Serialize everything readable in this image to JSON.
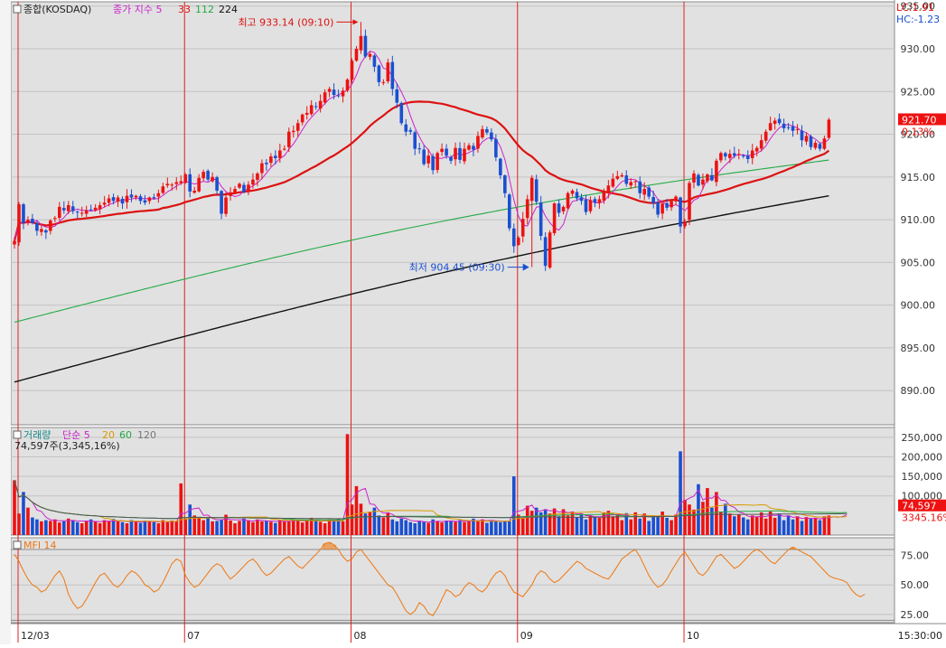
{
  "header": {
    "price_title": "종합(KOSDAQ)",
    "ma_label": "종가 지수 5",
    "ma_periods": [
      "33",
      "112",
      "224"
    ],
    "lc_label": "LC:1.91",
    "hc_label": "HC:-1.23"
  },
  "annotations": {
    "high": "최고 933.14 (09:10)",
    "low": "최저 904.45 (09:30)"
  },
  "badges": {
    "last_price": "921.70",
    "last_change": "0.13%",
    "last_volume": "74,597",
    "volume_pct": "3345.16%"
  },
  "volume_header": {
    "title": "거래량",
    "ma_prefix": "단순 5",
    "ma_periods": [
      "20",
      "60",
      "120"
    ],
    "current": "74,597주(3,345,16%)"
  },
  "mfi_header": {
    "title": "MFI 14"
  },
  "colors": {
    "up": "#ee1111",
    "down": "#1a4fd0",
    "ma5": "#cc22cc",
    "ma33": "#dd1111",
    "ma112": "#22aa44",
    "ma224": "#111111",
    "mfi": "#ee7711",
    "session_line": "#dd2222"
  },
  "chart_data": [
    {
      "type": "candlestick",
      "title": "종합(KOSDAQ)",
      "y_ticks": [
        "890.00",
        "895.00",
        "900.00",
        "905.00",
        "910.00",
        "915.00",
        "920.00",
        "925.00",
        "930.00",
        "935.00"
      ],
      "ylim": [
        886,
        935.5
      ],
      "x_ticks": [
        "12/03",
        "07",
        "08",
        "09",
        "10",
        "15:30:00"
      ],
      "session_starts": [
        0,
        37,
        74,
        111,
        148
      ],
      "high": {
        "value": 933.14,
        "index": 77
      },
      "low": {
        "value": 904.45,
        "index": 115
      },
      "closes": [
        907.5,
        911.8,
        909.6,
        910.0,
        909.6,
        908.7,
        908.9,
        908.5,
        909.9,
        910.2,
        911.5,
        911.1,
        911.7,
        911.0,
        910.9,
        910.8,
        911.1,
        911.2,
        911.4,
        911.7,
        912.0,
        912.5,
        912.2,
        912.6,
        911.9,
        912.8,
        912.6,
        912.8,
        912.2,
        912.0,
        912.6,
        912.5,
        913.1,
        913.9,
        914.2,
        914.1,
        914.4,
        914.5,
        915.3,
        913.3,
        913.4,
        914.9,
        915.6,
        914.7,
        915.0,
        913.4,
        910.7,
        912.6,
        913.2,
        913.6,
        914.2,
        913.2,
        914.1,
        914.7,
        915.4,
        916.6,
        916.5,
        917.4,
        917.2,
        918.1,
        918.3,
        920.3,
        920.4,
        921.3,
        922.3,
        922.5,
        923.4,
        923.2,
        923.9,
        924.9,
        925.3,
        924.6,
        924.5,
        925.1,
        926.4,
        928.6,
        930.0,
        931.5,
        929.1,
        929.4,
        927.9,
        926.1,
        926.1,
        928.4,
        925.3,
        923.7,
        921.3,
        920.3,
        920.3,
        918.3,
        918.3,
        916.5,
        917.5,
        915.8,
        917.8,
        918.3,
        917.5,
        916.9,
        918.4,
        917.0,
        918.3,
        918.7,
        918.2,
        919.8,
        920.6,
        920.2,
        919.4,
        917.3,
        915.2,
        913.1,
        909.0,
        906.9,
        907.9,
        910.1,
        912.4,
        914.9,
        912.1,
        908.1,
        904.6,
        908.5,
        911.9,
        910.8,
        911.5,
        913.1,
        913.4,
        912.5,
        912.2,
        910.9,
        912.3,
        912.0,
        912.4,
        913.2,
        914.0,
        914.8,
        915.1,
        915.2,
        914.2,
        914.4,
        914.5,
        913.1,
        913.6,
        912.7,
        911.9,
        910.6,
        911.9,
        911.4,
        912.2,
        912.7,
        909.2,
        909.8,
        914.3,
        915.4,
        914.0,
        914.7,
        915.3,
        914.6,
        916.9,
        917.8,
        917.4,
        917.7,
        917.5,
        917.7,
        917.5,
        917.1,
        918.1,
        918.4,
        919.3,
        920.3,
        921.3,
        921.6,
        921.3,
        920.7,
        920.8,
        920.4,
        920.6,
        919.3,
        919.8,
        918.5,
        919.0,
        918.3,
        919.5,
        921.7
      ],
      "series": [
        {
          "name": "5",
          "key": "ma5"
        },
        {
          "name": "33",
          "key": "ma33"
        },
        {
          "name": "112",
          "key": "ma112",
          "start": 898.0,
          "end": 916.3
        },
        {
          "name": "224",
          "key": "ma224",
          "start": 891.0,
          "end": 912.3
        }
      ]
    },
    {
      "type": "bar",
      "title": "거래량",
      "y_ticks": [
        "100,000",
        "150,000",
        "200,000",
        "250,000"
      ],
      "ylim": [
        0,
        275000
      ],
      "volumes": [
        140000,
        55000,
        110000,
        70000,
        45000,
        40000,
        35000,
        38000,
        36000,
        40000,
        32000,
        35000,
        42000,
        38000,
        33000,
        30000,
        36000,
        40000,
        34000,
        30000,
        38000,
        36000,
        41000,
        35000,
        33000,
        30000,
        38000,
        34000,
        31000,
        37000,
        36000,
        33000,
        30000,
        38000,
        33000,
        37000,
        35000,
        132000,
        42000,
        78000,
        50000,
        44000,
        38000,
        45000,
        35000,
        36000,
        40000,
        52000,
        37000,
        30000,
        36000,
        42000,
        38000,
        33000,
        40000,
        35000,
        37000,
        34000,
        31000,
        38000,
        35000,
        36000,
        40000,
        37000,
        32000,
        38000,
        44000,
        36000,
        34000,
        30000,
        40000,
        38000,
        42000,
        35000,
        258000,
        78000,
        125000,
        80000,
        55000,
        60000,
        70000,
        50000,
        45000,
        58000,
        40000,
        35000,
        42000,
        38000,
        33000,
        30000,
        36000,
        34000,
        31000,
        40000,
        35000,
        32000,
        37000,
        36000,
        34000,
        38000,
        33000,
        35000,
        42000,
        36000,
        40000,
        31000,
        38000,
        37000,
        33000,
        36000,
        35000,
        150000,
        52000,
        44000,
        75000,
        62000,
        70000,
        58000,
        64000,
        55000,
        68000,
        48000,
        66000,
        50000,
        60000,
        45000,
        54000,
        40000,
        50000,
        46000,
        44000,
        58000,
        62000,
        48000,
        52000,
        38000,
        56000,
        40000,
        58000,
        42000,
        55000,
        36000,
        50000,
        48000,
        60000,
        44000,
        38000,
        52000,
        214000,
        90000,
        78000,
        65000,
        130000,
        85000,
        120000,
        70000,
        110000,
        60000,
        80000,
        55000,
        48000,
        52000,
        45000,
        40000,
        50000,
        46000,
        58000,
        42000,
        60000,
        44000,
        55000,
        38000,
        50000,
        40000,
        48000,
        36000,
        46000,
        42000,
        44000,
        38000,
        48000,
        50000,
        52000,
        40000,
        45000,
        74597
      ]
    },
    {
      "type": "line",
      "title": "MFI 14",
      "y_ticks": [
        "25.00",
        "50.00",
        "75.00"
      ],
      "ylim": [
        18,
        90
      ],
      "values": [
        76,
        70,
        62,
        55,
        50,
        48,
        44,
        46,
        52,
        58,
        62,
        55,
        42,
        35,
        30,
        32,
        38,
        45,
        52,
        58,
        60,
        55,
        50,
        48,
        52,
        58,
        62,
        60,
        56,
        50,
        48,
        44,
        46,
        52,
        60,
        68,
        72,
        70,
        58,
        52,
        48,
        50,
        55,
        60,
        65,
        68,
        66,
        60,
        55,
        58,
        62,
        66,
        70,
        72,
        68,
        62,
        58,
        60,
        64,
        68,
        72,
        74,
        70,
        66,
        64,
        68,
        72,
        76,
        80,
        85,
        86,
        84,
        80,
        74,
        70,
        72,
        78,
        80,
        75,
        70,
        65,
        60,
        55,
        50,
        48,
        42,
        35,
        28,
        25,
        28,
        35,
        32,
        26,
        24,
        30,
        38,
        46,
        44,
        40,
        42,
        48,
        52,
        50,
        46,
        44,
        48,
        55,
        60,
        62,
        58,
        50,
        44,
        42,
        40,
        45,
        50,
        58,
        62,
        60,
        55,
        52,
        54,
        58,
        62,
        66,
        70,
        68,
        64,
        62,
        60,
        58,
        56,
        55,
        60,
        66,
        72,
        75,
        78,
        80,
        74,
        66,
        58,
        52,
        48,
        50,
        55,
        62,
        68,
        74,
        78,
        72,
        66,
        60,
        58,
        62,
        68,
        74,
        76,
        72,
        68,
        64,
        66,
        70,
        74,
        78,
        80,
        78,
        74,
        70,
        68,
        72,
        76,
        80,
        82,
        80,
        78,
        76,
        74,
        70,
        66,
        62,
        58,
        56,
        55,
        54,
        52,
        46,
        42,
        40,
        42
      ]
    }
  ]
}
